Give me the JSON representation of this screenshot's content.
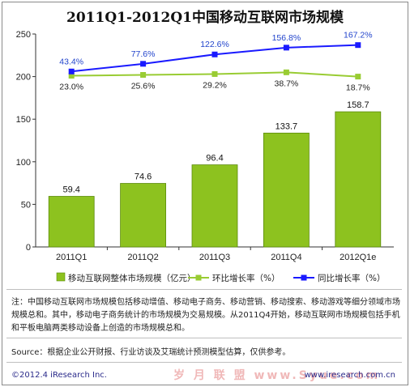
{
  "chart_data": {
    "title": "2011Q1-2012Q1中国移动互联网市场规模",
    "categories": [
      "2011Q1",
      "2011Q2",
      "2011Q3",
      "2011Q4",
      "2012Q1e"
    ],
    "ylim": [
      0,
      250
    ],
    "yticks": [
      0,
      50,
      100,
      150,
      200,
      250
    ],
    "series": [
      {
        "name": "移动互联网整体市场规模（亿元）",
        "type": "bar",
        "color": "#8dc21f",
        "values": [
          59.4,
          74.6,
          96.4,
          133.7,
          158.7
        ],
        "labels": [
          "59.4",
          "74.6",
          "96.4",
          "133.7",
          "158.7"
        ]
      },
      {
        "name": "环比增长率（%）",
        "type": "line",
        "color": "#99cc33",
        "y_positions": [
          201,
          202,
          203,
          205,
          200
        ],
        "labels": [
          "23.0%",
          "25.6%",
          "29.2%",
          "38.7%",
          "18.7%"
        ]
      },
      {
        "name": "同比增长率（%）",
        "type": "line",
        "color": "#1a1aff",
        "y_positions": [
          206,
          215,
          226,
          234,
          237
        ],
        "labels": [
          "43.4%",
          "77.6%",
          "122.6%",
          "156.8%",
          "167.2%"
        ]
      }
    ],
    "legend_position": "bottom"
  },
  "note": "注：中国移动互联网市场规模包括移动增值、移动电子商务、移动营销、移动搜索、移动游戏等细分领域市场规模总和。其中，移动电子商务统计的市场规模为交易规模。从2011Q4开始，移动互联网市场规模包括手机和平板电脑两类移动设备上创造的市场规模总和。",
  "source": "Source：根据企业公开财报、行业访谈及艾瑞统计预测模型估算，仅供参考。",
  "footer": {
    "copyright": "©2012.4 iResearch Inc.",
    "website": "www.iresearch.com.cn",
    "watermark": "岁 月 联 盟 www.Syue.com"
  }
}
